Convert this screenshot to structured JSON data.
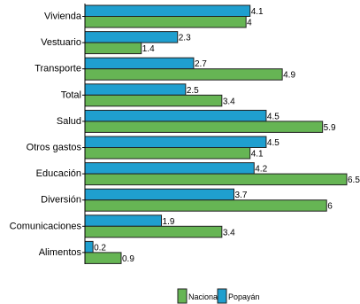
{
  "chart_data": {
    "type": "bar",
    "orientation": "horizontal",
    "categories": [
      "Vivienda",
      "Vestuario",
      "Transporte",
      "Total",
      "Salud",
      "Otros gastos",
      "Educación",
      "Diversión",
      "Comunicaciones",
      "Alimentos"
    ],
    "series": [
      {
        "name": "Popayán",
        "color": "#1f9fcf",
        "values": [
          4.1,
          2.3,
          2.7,
          2.5,
          4.5,
          4.5,
          4.2,
          3.7,
          1.9,
          0.2
        ]
      },
      {
        "name": "Nacional",
        "color": "#66b554",
        "values": [
          4,
          1.4,
          4.9,
          3.4,
          5.9,
          4.1,
          6.5,
          6,
          3.4,
          0.9
        ]
      }
    ],
    "legend": {
      "placement": "bottom",
      "order": [
        "Nacional",
        "Popayán"
      ]
    },
    "xlim": [
      0,
      6.5
    ],
    "grid": false
  }
}
